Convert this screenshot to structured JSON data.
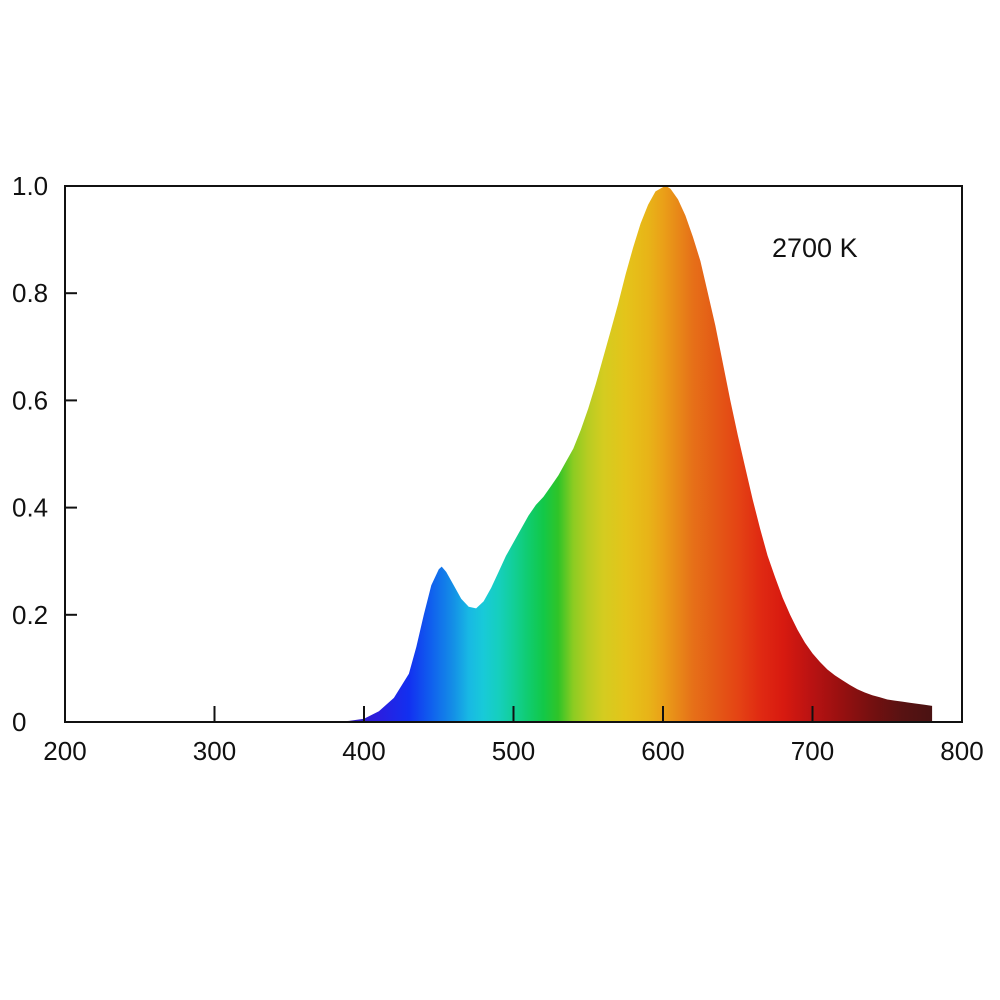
{
  "chart_data": {
    "type": "area",
    "annotation": "2700 K",
    "xlim": [
      200,
      800
    ],
    "ylim": [
      0,
      1.0
    ],
    "x_ticks": [
      200,
      300,
      400,
      500,
      600,
      700,
      800
    ],
    "x_tick_labels": [
      "200",
      "300",
      "400",
      "500",
      "600",
      "700",
      "800"
    ],
    "y_ticks": [
      0,
      0.2,
      0.4,
      0.6,
      0.8,
      1.0
    ],
    "y_tick_labels": [
      "0",
      "0.2",
      "0.4",
      "0.6",
      "0.8",
      "1.0"
    ],
    "grid": false,
    "fill": "visible-spectrum color gradient",
    "series": [
      {
        "x": [
          380,
          390,
          400,
          410,
          420,
          430,
          435,
          440,
          445,
          450,
          452,
          455,
          460,
          465,
          470,
          475,
          480,
          485,
          490,
          495,
          500,
          505,
          510,
          515,
          520,
          525,
          530,
          535,
          540,
          545,
          550,
          555,
          560,
          565,
          570,
          575,
          580,
          585,
          590,
          595,
          600,
          602,
          605,
          610,
          615,
          620,
          625,
          630,
          635,
          640,
          645,
          650,
          655,
          660,
          665,
          670,
          675,
          680,
          685,
          690,
          695,
          700,
          705,
          710,
          715,
          720,
          725,
          730,
          735,
          740,
          745,
          750,
          755,
          760,
          765,
          770,
          775,
          780
        ],
        "y": [
          0.0,
          0.002,
          0.006,
          0.02,
          0.045,
          0.09,
          0.14,
          0.2,
          0.255,
          0.285,
          0.29,
          0.28,
          0.255,
          0.23,
          0.215,
          0.212,
          0.225,
          0.25,
          0.28,
          0.31,
          0.335,
          0.36,
          0.385,
          0.405,
          0.42,
          0.44,
          0.46,
          0.485,
          0.51,
          0.545,
          0.585,
          0.63,
          0.68,
          0.73,
          0.78,
          0.835,
          0.885,
          0.93,
          0.965,
          0.99,
          0.998,
          1.0,
          0.995,
          0.975,
          0.945,
          0.905,
          0.86,
          0.8,
          0.74,
          0.67,
          0.6,
          0.535,
          0.475,
          0.415,
          0.36,
          0.31,
          0.27,
          0.232,
          0.2,
          0.172,
          0.148,
          0.128,
          0.112,
          0.098,
          0.087,
          0.078,
          0.069,
          0.061,
          0.055,
          0.05,
          0.046,
          0.042,
          0.04,
          0.038,
          0.036,
          0.034,
          0.032,
          0.03
        ]
      }
    ]
  }
}
